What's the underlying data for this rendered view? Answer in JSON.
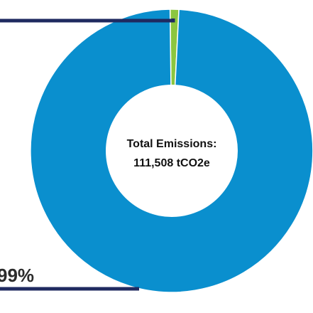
{
  "chart_data": {
    "type": "pie",
    "style": "donut",
    "center_label": {
      "line1": "Total Emissions:",
      "line2": "111,508 tCO2e"
    },
    "slices": [
      {
        "value": 1,
        "color": "#8cc63f"
      },
      {
        "value": 99,
        "color": "#0a8fce",
        "label": "99%"
      }
    ],
    "colors": {
      "leader_line": "#1f2a60",
      "label_text": "#2b2b2b",
      "center_text": "#111111",
      "background": "#ffffff"
    }
  }
}
